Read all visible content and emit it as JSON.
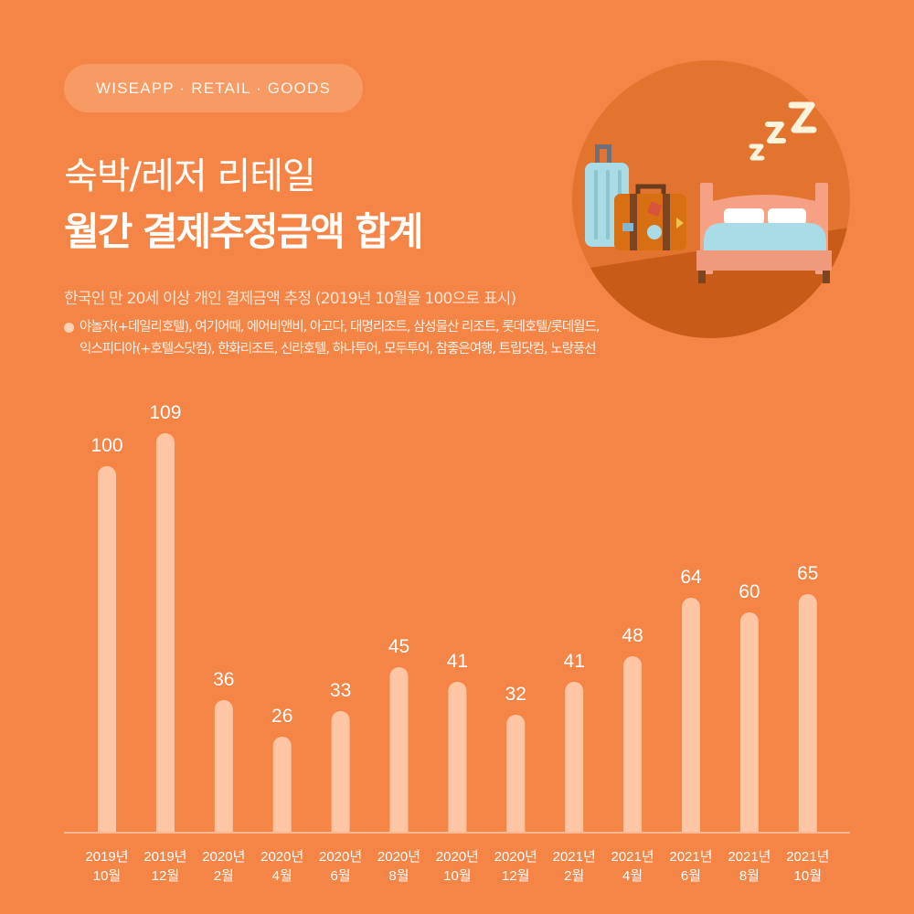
{
  "header": {
    "tag": "WISEAPP · RETAIL · GOODS",
    "title_line1": "숙박/레저 리테일",
    "title_line2": "월간 결제추정금액 합계",
    "subtitle": "한국인 만 20세 이상 개인 결제금액 추정 (2019년 10월을 100으로 표시)",
    "note_lines": [
      "야놀자(+데일리호텔), 여기어때, 에어비앤비, 아고다, 대명리조트, 삼성물산 리조트, 롯데호텔/롯데월드,",
      "익스피디아(+호텔스닷컴), 한화리조트, 신라호텔, 하나투어, 모두투어, 참좋은여행, 트립닷컴, 노랑풍선"
    ]
  },
  "illustration": {
    "icons": [
      "sleep-zzz-icon",
      "suitcase-icon",
      "bag-icon",
      "bed-icon"
    ]
  },
  "colors": {
    "background": "#f48546",
    "bar": "#ffc6a5",
    "circle": "#e2742f",
    "axis": "#ffc9ab"
  },
  "chart_data": {
    "type": "bar",
    "categories": [
      [
        "2019년",
        "10월"
      ],
      [
        "2019년",
        "12월"
      ],
      [
        "2020년",
        "2월"
      ],
      [
        "2020년",
        "4월"
      ],
      [
        "2020년",
        "6월"
      ],
      [
        "2020년",
        "8월"
      ],
      [
        "2020년",
        "10월"
      ],
      [
        "2020년",
        "12월"
      ],
      [
        "2021년",
        "2월"
      ],
      [
        "2021년",
        "4월"
      ],
      [
        "2021년",
        "6월"
      ],
      [
        "2021년",
        "8월"
      ],
      [
        "2021년",
        "10월"
      ]
    ],
    "values": [
      100,
      109,
      36,
      26,
      33,
      45,
      41,
      32,
      41,
      48,
      64,
      60,
      65
    ],
    "data_labels": true,
    "grid": false,
    "legend": "none"
  }
}
